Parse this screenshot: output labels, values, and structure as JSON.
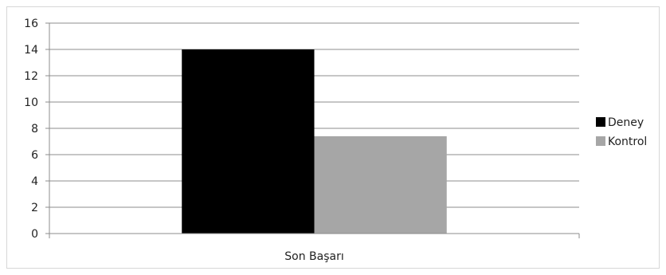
{
  "chart_data": {
    "type": "bar",
    "categories": [
      "Son Başarı"
    ],
    "series": [
      {
        "name": "Deney",
        "values": [
          14
        ],
        "color": "#000000"
      },
      {
        "name": "Kontrol",
        "values": [
          7.4
        ],
        "color": "#a6a6a6"
      }
    ],
    "ylim": [
      0,
      16
    ],
    "yticks": [
      0,
      2,
      4,
      6,
      8,
      10,
      12,
      14,
      16
    ],
    "grid": true,
    "legend_position": "right"
  }
}
